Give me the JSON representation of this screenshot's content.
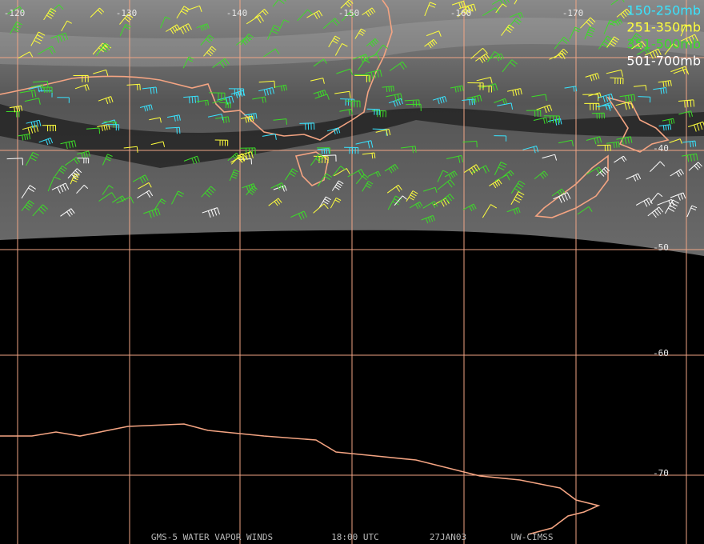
{
  "legend": [
    {
      "label": "150-250mb",
      "color": "#38e4ff"
    },
    {
      "label": "251-350mb",
      "color": "#ffff3c"
    },
    {
      "label": "351-500mb",
      "color": "#3cdc28"
    },
    {
      "label": "501-700mb",
      "color": "#ffffff"
    }
  ],
  "longitude_labels": [
    "-120",
    "-130",
    "-140",
    "-150",
    "-160",
    "-170"
  ],
  "latitude_labels": [
    "-40",
    "-50",
    "-60",
    "-70"
  ],
  "footer": [
    "GMS-5 WATER VAPOR WINDS",
    "18:00 UTC",
    "27JAN03",
    "UW-CIMSS"
  ]
}
